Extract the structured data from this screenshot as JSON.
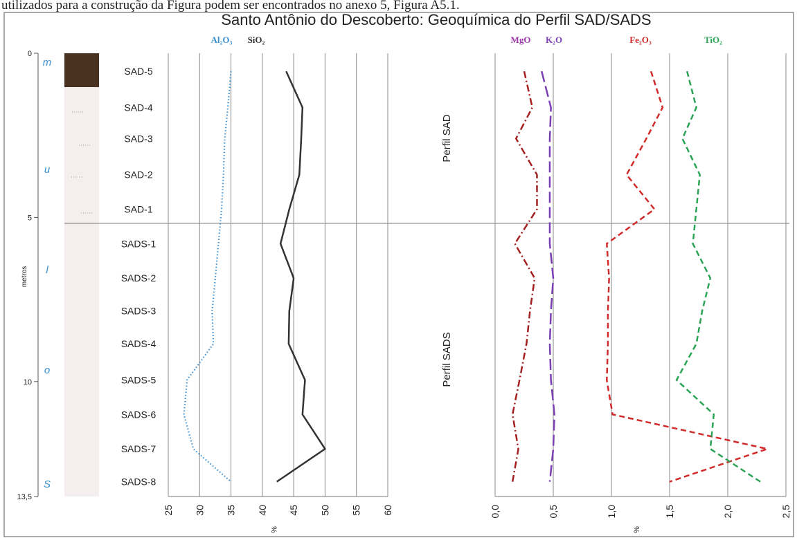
{
  "caption_fragment": "utilizados para a construção da Figura podem ser encontrados no anexo 5, Figura A5.1.",
  "title": "Santo Antônio do Descoberto: Geoquímica do Perfil SAD/SADS",
  "chart_data": [
    {
      "type": "line",
      "depth_label": "metros",
      "ylim": [
        0,
        13.5
      ],
      "yticks": [
        0,
        5,
        10,
        {
          "value": 13.5,
          "label": "13,5"
        }
      ],
      "units": [
        "m",
        "u",
        "l",
        "o",
        "S"
      ],
      "samples": [
        "SAD-5",
        "SAD-4",
        "SAD-3",
        "SAD-2",
        "SAD-1",
        "SADS-1",
        "SADS-2",
        "SADS-3",
        "SADS-4",
        "SADS-5",
        "SADS-6",
        "SADS-7",
        "SADS-8"
      ],
      "y": [
        0.55,
        1.65,
        2.6,
        3.7,
        4.75,
        5.8,
        6.85,
        7.85,
        8.85,
        9.95,
        11.0,
        12.05,
        13.05
      ],
      "xlim": [
        25,
        60
      ],
      "xticks": [
        25,
        30,
        35,
        40,
        45,
        50,
        55,
        60
      ],
      "xlabel": "%",
      "grid": true,
      "series": [
        {
          "name": "Al₂O₃",
          "color": "#3a8fd0",
          "dash": "dotted",
          "values": [
            35,
            34.5,
            34,
            33.8,
            33.5,
            33,
            32.5,
            32,
            32.2,
            28,
            27.5,
            29,
            35
          ]
        },
        {
          "name": "SiO₂",
          "color": "#333333",
          "dash": "solid",
          "values": [
            43.8,
            46.4,
            46.2,
            45.9,
            44.3,
            42.9,
            45,
            44.3,
            44.2,
            46.8,
            46.4,
            50,
            42.3
          ]
        }
      ]
    },
    {
      "type": "line",
      "ylim": [
        0,
        13.5
      ],
      "y": [
        0.55,
        1.65,
        2.6,
        3.7,
        4.75,
        5.8,
        6.85,
        7.85,
        8.85,
        9.95,
        11.0,
        12.05,
        13.05
      ],
      "xlim": [
        0,
        2.5
      ],
      "xticks": [
        {
          "value": 0,
          "label": "0,0"
        },
        {
          "value": 0.5,
          "label": "0,5"
        },
        {
          "value": 1,
          "label": "1,0"
        },
        {
          "value": 1.5,
          "label": "1,5"
        },
        {
          "value": 2,
          "label": "2,0"
        },
        {
          "value": 2.5,
          "label": "2,5"
        }
      ],
      "xlabel": "%",
      "grid": true,
      "annotations": [
        "Perfil SAD",
        "Perfil SADS"
      ],
      "series": [
        {
          "name": "MgO",
          "color": "#a52020",
          "label_color": "#9b3aa8",
          "dash": "dashdot",
          "values": [
            0.25,
            0.32,
            0.18,
            0.36,
            0.36,
            0.17,
            0.34,
            0.3,
            0.27,
            0.21,
            0.15,
            0.2,
            0.15
          ]
        },
        {
          "name": "K₂O",
          "color": "#7b3fb5",
          "dash": "long",
          "values": [
            0.4,
            0.48,
            0.47,
            0.47,
            0.47,
            0.47,
            0.5,
            0.48,
            0.47,
            0.48,
            0.51,
            0.5,
            0.47
          ]
        },
        {
          "name": "Fe₂O₃",
          "color": "#d12a2a",
          "dash": "dashed",
          "values": [
            1.34,
            1.44,
            1.3,
            1.13,
            1.37,
            0.96,
            0.98,
            0.97,
            0.97,
            0.96,
            1.01,
            2.34,
            1.5
          ]
        },
        {
          "name": "TiO₂",
          "color": "#2aa355",
          "dash": "dashed",
          "values": [
            1.65,
            1.73,
            1.61,
            1.76,
            1.73,
            1.7,
            1.85,
            1.78,
            1.73,
            1.56,
            1.88,
            1.85,
            2.28
          ]
        }
      ]
    }
  ]
}
